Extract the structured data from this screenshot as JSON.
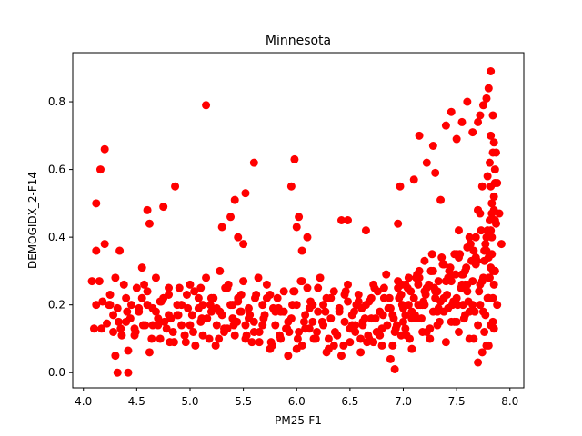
{
  "chart_data": {
    "type": "scatter",
    "title": "Minnesota",
    "xlabel": "PM25-F1",
    "ylabel": "DEMOGIDX_2-F14",
    "xlim": [
      3.9,
      8.13
    ],
    "ylim": [
      -0.045,
      0.945
    ],
    "xticks": [
      4.0,
      4.5,
      5.0,
      5.5,
      6.0,
      6.5,
      7.0,
      7.5,
      8.0
    ],
    "xtick_labels": [
      "4.0",
      "4.5",
      "5.0",
      "5.5",
      "6.0",
      "6.5",
      "7.0",
      "7.5",
      "8.0"
    ],
    "yticks": [
      0.0,
      0.2,
      0.4,
      0.6,
      0.8
    ],
    "ytick_labels": [
      "0.0",
      "0.2",
      "0.4",
      "0.6",
      "0.8"
    ],
    "grid": false,
    "marker_color": "#ff0000",
    "series": [
      {
        "x": [
          4.08,
          4.1,
          4.12,
          4.15,
          4.18,
          4.22,
          4.25,
          4.28,
          4.3,
          4.32,
          4.35,
          4.38,
          4.4,
          4.42,
          4.45,
          4.48,
          4.5,
          4.52,
          4.55,
          4.58,
          4.6,
          4.62,
          4.65,
          4.68,
          4.7,
          4.72,
          4.75,
          4.78,
          4.8,
          4.82,
          4.85,
          4.88,
          4.9,
          4.92,
          4.95,
          4.98,
          5.0,
          5.02,
          5.05,
          5.08,
          5.1,
          5.12,
          5.15,
          5.18,
          5.2,
          5.22,
          5.25,
          5.28,
          5.3,
          5.32,
          5.35,
          5.38,
          5.4,
          5.42,
          5.45,
          5.48,
          5.5,
          5.52,
          5.55,
          5.58,
          5.6,
          5.62,
          5.65,
          5.68,
          5.7,
          5.72,
          5.75,
          5.78,
          5.8,
          5.82,
          5.85,
          5.88,
          5.9,
          5.92,
          5.95,
          5.98,
          6.0,
          6.02,
          6.05,
          6.08,
          6.1,
          6.12,
          6.15,
          6.18,
          6.2,
          6.22,
          6.25,
          6.28,
          6.3,
          6.32,
          6.35,
          6.38,
          6.4,
          6.42,
          6.45,
          6.48,
          6.5,
          6.52,
          6.55,
          6.58,
          6.6,
          6.62,
          6.65,
          6.68,
          6.7,
          6.72,
          6.75,
          6.78,
          6.8,
          6.82,
          6.85,
          6.88,
          6.9,
          6.92,
          6.95,
          6.98,
          7.0,
          7.02,
          7.05,
          7.08,
          7.1,
          7.12,
          7.15,
          7.18,
          7.2,
          7.22,
          7.25,
          7.28,
          7.3,
          7.32,
          7.35,
          7.38,
          7.4,
          7.42,
          7.45,
          7.48,
          7.5,
          7.52,
          7.55,
          7.58,
          7.6,
          7.62,
          7.65,
          7.68,
          7.7,
          7.72,
          7.75,
          7.78,
          7.8,
          7.82,
          7.85,
          7.88,
          7.9,
          7.92,
          4.12,
          4.2,
          4.34,
          4.6,
          4.62,
          4.75,
          4.86,
          5.15,
          5.3,
          5.38,
          5.42,
          5.45,
          5.5,
          5.52,
          5.6,
          5.95,
          5.98,
          6.0,
          6.02,
          6.05,
          6.1,
          6.42,
          6.48,
          6.65,
          6.95,
          6.97,
          7.1,
          7.15,
          7.22,
          7.28,
          7.3,
          7.35,
          7.4,
          7.45,
          7.5,
          7.55,
          7.6,
          7.65,
          7.7,
          7.72,
          7.75,
          7.78,
          7.8,
          7.82,
          7.84,
          7.85,
          7.86,
          7.87,
          7.88,
          7.83,
          7.81,
          7.79,
          7.77,
          7.74,
          7.72,
          7.68,
          7.64,
          7.6,
          7.56,
          7.52,
          7.48,
          7.44,
          7.4,
          7.36,
          7.32,
          7.28,
          7.24,
          7.2,
          7.16,
          7.12,
          7.08,
          7.04,
          7.0,
          6.96,
          6.92,
          6.88,
          6.84,
          6.8,
          6.76,
          6.72,
          6.68,
          6.64,
          6.6,
          6.56,
          6.52,
          6.48,
          6.44,
          6.4,
          6.36,
          6.32,
          6.28,
          6.24,
          6.2,
          6.16,
          6.12,
          6.08,
          6.04,
          6.0,
          5.96,
          5.92,
          5.88,
          5.84,
          5.8,
          5.76,
          5.72,
          5.68,
          5.64,
          5.6,
          5.56,
          5.52,
          5.48,
          5.44,
          5.4,
          5.36,
          5.32,
          5.28,
          5.24,
          5.2,
          5.16,
          5.12,
          5.08,
          5.04,
          5.0,
          4.96,
          4.92,
          4.88,
          4.84,
          4.8,
          4.76,
          4.72,
          4.68,
          4.64,
          4.6,
          4.56,
          4.52,
          4.48,
          4.44,
          4.4,
          4.36,
          4.32,
          4.28,
          4.24,
          4.2,
          4.16,
          4.12,
          7.83,
          7.85,
          7.86,
          7.84,
          7.82,
          7.8,
          7.78,
          7.76,
          7.74,
          7.7,
          7.66,
          7.62,
          7.58,
          7.54,
          7.5,
          7.46,
          7.42,
          7.38,
          7.34,
          7.3,
          7.26,
          7.22,
          7.18,
          7.14,
          7.06,
          7.02,
          6.98,
          6.94,
          6.9,
          6.86,
          6.82,
          6.78,
          6.74,
          6.7,
          6.66,
          6.62,
          6.58,
          6.54,
          6.5,
          6.46,
          6.3,
          6.25,
          6.15,
          6.05,
          5.93,
          5.85,
          5.75,
          5.65,
          5.55,
          5.45,
          5.35,
          5.25,
          5.1,
          4.95,
          4.8,
          4.7,
          4.55,
          4.42,
          4.3,
          7.84,
          7.86,
          7.82,
          7.8,
          7.76,
          7.72,
          7.7,
          7.68,
          7.62,
          7.58,
          7.52,
          7.47,
          7.43,
          7.38,
          7.33,
          7.27,
          7.21,
          7.17,
          7.13,
          7.05,
          6.99,
          6.93,
          6.87,
          6.81,
          6.73,
          6.67,
          6.61,
          6.55,
          6.45,
          6.35,
          6.27,
          6.19,
          6.13,
          6.07,
          6.01,
          5.97,
          5.91,
          5.83,
          5.77,
          5.69,
          5.61,
          5.53,
          5.47,
          5.41,
          5.33,
          5.27,
          5.19,
          5.11,
          5.03,
          4.97,
          4.89,
          4.81,
          4.73,
          4.65,
          4.57,
          4.49,
          4.41,
          4.33,
          4.25,
          4.17,
          7.85,
          7.83,
          7.81,
          7.79,
          7.87,
          7.86,
          7.84,
          7.82,
          7.8,
          7.78,
          7.75,
          7.73,
          7.71,
          7.69,
          7.67,
          7.65,
          7.63,
          7.61,
          7.59,
          7.57,
          7.55,
          7.53,
          7.51,
          7.49,
          7.45,
          7.41,
          7.37,
          7.33,
          7.29,
          7.25,
          7.19,
          7.15,
          7.11,
          7.07,
          7.03,
          6.99,
          6.95,
          6.91,
          7.82,
          7.84,
          7.86,
          7.85,
          7.83,
          7.8,
          7.81,
          7.79,
          7.77,
          7.76,
          7.74,
          7.7,
          7.66,
          7.6,
          7.56,
          7.5,
          7.44,
          7.38,
          7.32,
          7.26,
          7.2,
          7.14,
          7.08,
          7.02
        ],
        "y": [
          0.27,
          0.13,
          0.2,
          0.27,
          0.21,
          0.145,
          0.23,
          0.17,
          0.28,
          0.19,
          0.13,
          0.26,
          0.15,
          0.065,
          0.2,
          0.11,
          0.25,
          0.18,
          0.31,
          0.14,
          0.2,
          0.06,
          0.19,
          0.28,
          0.16,
          0.1,
          0.22,
          0.13,
          0.23,
          0.16,
          0.09,
          0.2,
          0.25,
          0.14,
          0.11,
          0.19,
          0.26,
          0.17,
          0.08,
          0.22,
          0.15,
          0.2,
          0.28,
          0.1,
          0.18,
          0.22,
          0.14,
          0.3,
          0.17,
          0.12,
          0.25,
          0.2,
          0.16,
          0.11,
          0.22,
          0.18,
          0.27,
          0.14,
          0.19,
          0.09,
          0.15,
          0.23,
          0.12,
          0.2,
          0.17,
          0.26,
          0.07,
          0.19,
          0.14,
          0.22,
          0.1,
          0.18,
          0.13,
          0.05,
          0.16,
          0.24,
          0.2,
          0.12,
          0.08,
          0.17,
          0.25,
          0.13,
          0.2,
          0.1,
          0.18,
          0.28,
          0.14,
          0.22,
          0.07,
          0.16,
          0.24,
          0.11,
          0.19,
          0.05,
          0.15,
          0.21,
          0.09,
          0.17,
          0.12,
          0.23,
          0.06,
          0.14,
          0.2,
          0.1,
          0.16,
          0.26,
          0.12,
          0.18,
          0.08,
          0.22,
          0.14,
          0.04,
          0.17,
          0.01,
          0.25,
          0.11,
          0.19,
          0.13,
          0.28,
          0.07,
          0.22,
          0.16,
          0.3,
          0.12,
          0.2,
          0.25,
          0.1,
          0.18,
          0.24,
          0.14,
          0.21,
          0.32,
          0.09,
          0.19,
          0.27,
          0.15,
          0.22,
          0.12,
          0.29,
          0.17,
          0.24,
          0.1,
          0.2,
          0.34,
          0.14,
          0.26,
          0.18,
          0.08,
          0.22,
          0.31,
          0.13,
          0.2,
          0.47,
          0.38,
          0.36,
          0.66,
          0.36,
          0.48,
          0.44,
          0.49,
          0.55,
          0.79,
          0.43,
          0.46,
          0.51,
          0.4,
          0.38,
          0.53,
          0.62,
          0.55,
          0.63,
          0.43,
          0.46,
          0.36,
          0.4,
          0.45,
          0.45,
          0.42,
          0.44,
          0.55,
          0.57,
          0.7,
          0.62,
          0.67,
          0.59,
          0.51,
          0.73,
          0.77,
          0.69,
          0.74,
          0.8,
          0.71,
          0.74,
          0.76,
          0.79,
          0.81,
          0.84,
          0.89,
          0.76,
          0.68,
          0.6,
          0.65,
          0.56,
          0.5,
          0.45,
          0.42,
          0.38,
          0.55,
          0.47,
          0.4,
          0.33,
          0.37,
          0.29,
          0.42,
          0.35,
          0.31,
          0.27,
          0.34,
          0.24,
          0.3,
          0.26,
          0.33,
          0.2,
          0.28,
          0.18,
          0.25,
          0.15,
          0.22,
          0.12,
          0.19,
          0.29,
          0.13,
          0.24,
          0.09,
          0.21,
          0.16,
          0.1,
          0.2,
          0.14,
          0.26,
          0.08,
          0.18,
          0.12,
          0.22,
          0.06,
          0.15,
          0.25,
          0.1,
          0.19,
          0.13,
          0.27,
          0.07,
          0.2,
          0.15,
          0.24,
          0.11,
          0.18,
          0.09,
          0.22,
          0.14,
          0.28,
          0.12,
          0.17,
          0.1,
          0.23,
          0.15,
          0.2,
          0.26,
          0.13,
          0.18,
          0.08,
          0.22,
          0.16,
          0.11,
          0.19,
          0.24,
          0.14,
          0.09,
          0.2,
          0.17,
          0.12,
          0.25,
          0.15,
          0.21,
          0.18,
          0.1,
          0.24,
          0.14,
          0.19,
          0.13,
          0.16,
          0.22,
          0.11,
          0.0,
          0.12,
          0.2,
          0.38,
          0.6,
          0.5,
          0.35,
          0.26,
          0.45,
          0.3,
          0.55,
          0.22,
          0.4,
          0.33,
          0.27,
          0.48,
          0.36,
          0.18,
          0.3,
          0.25,
          0.35,
          0.2,
          0.28,
          0.32,
          0.15,
          0.22,
          0.3,
          0.12,
          0.2,
          0.26,
          0.1,
          0.17,
          0.23,
          0.14,
          0.08,
          0.19,
          0.25,
          0.11,
          0.16,
          0.22,
          0.09,
          0.15,
          0.21,
          0.18,
          0.13,
          0.24,
          0.1,
          0.2,
          0.15,
          0.27,
          0.12,
          0.18,
          0.23,
          0.09,
          0.16,
          0.21,
          0.13,
          0.19,
          0.25,
          0.11,
          0.17,
          0.14,
          0.22,
          0.0,
          0.05,
          0.15,
          0.3,
          0.42,
          0.28,
          0.36,
          0.2,
          0.48,
          0.32,
          0.4,
          0.26,
          0.34,
          0.21,
          0.3,
          0.18,
          0.27,
          0.35,
          0.23,
          0.16,
          0.29,
          0.2,
          0.26,
          0.13,
          0.22,
          0.17,
          0.25,
          0.11,
          0.19,
          0.14,
          0.23,
          0.08,
          0.18,
          0.12,
          0.21,
          0.15,
          0.1,
          0.24,
          0.13,
          0.19,
          0.08,
          0.16,
          0.22,
          0.11,
          0.18,
          0.14,
          0.25,
          0.1,
          0.2,
          0.16,
          0.12,
          0.23,
          0.17,
          0.09,
          0.21,
          0.14,
          0.26,
          0.12,
          0.18,
          0.15,
          0.2,
          0.13,
          0.52,
          0.47,
          0.62,
          0.58,
          0.44,
          0.3,
          0.22,
          0.14,
          0.08,
          0.36,
          0.28,
          0.42,
          0.24,
          0.33,
          0.18,
          0.27,
          0.38,
          0.21,
          0.31,
          0.16,
          0.26,
          0.35,
          0.2,
          0.29,
          0.15,
          0.23,
          0.32,
          0.19,
          0.25,
          0.13,
          0.21,
          0.28,
          0.17,
          0.24,
          0.11,
          0.2,
          0.27,
          0.16,
          0.7,
          0.65,
          0.56,
          0.48,
          0.4,
          0.34,
          0.28,
          0.22,
          0.17,
          0.12,
          0.06,
          0.03,
          0.1,
          0.26,
          0.2,
          0.15,
          0.28,
          0.22,
          0.18,
          0.3,
          0.24,
          0.2,
          0.16,
          0.26
        ]
      }
    ]
  }
}
